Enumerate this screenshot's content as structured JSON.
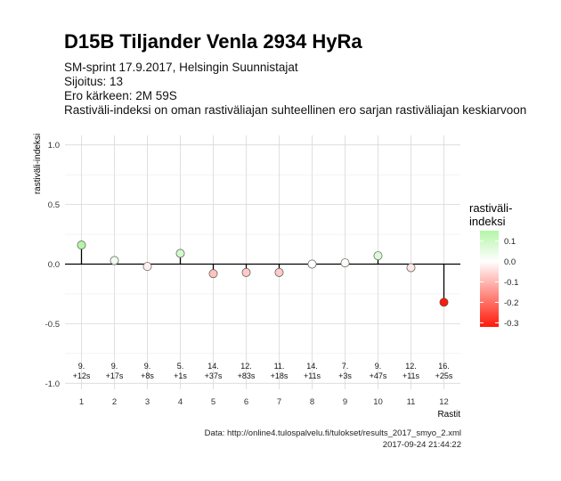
{
  "title": "D15B Tiljander Venla 2934 HyRa",
  "subtitle_lines": [
    "SM-sprint 17.9.2017, Helsingin Suunnistajat",
    "Sijoitus: 13",
    "Ero kärkeen: 2M 59S",
    "Rastiväli-indeksi on oman rastiväliajan suhteellinen ero sarjan rastiväliajan keskiarvoon"
  ],
  "caption": {
    "source": "Data: http://online4.tulospalvelu.fi/tulokset/results_2017_smyo_2.xml",
    "timestamp": "2017-09-24 21:44:22"
  },
  "legend": {
    "title": "rastiväli-\nindeksi",
    "ticks": [
      0.1,
      0.0,
      -0.1,
      -0.2,
      -0.3
    ],
    "tick_labels": [
      "0.1",
      "0.0",
      "-0.1",
      "-0.2",
      "-0.3"
    ],
    "color_high": "#b4f5a8",
    "color_mid": "#ffffff",
    "color_low": "#ff1a0a"
  },
  "chart_data": {
    "type": "lollipop",
    "xlabel": "Rastit",
    "ylabel": "rastiväli-indeksi",
    "ylim": [
      -1.05,
      1.08
    ],
    "y_ticks": [
      -1.0,
      -0.5,
      0.0,
      0.5,
      1.0
    ],
    "y_tick_labels": [
      "-1.0",
      "-0.5",
      "0.0",
      "0.5",
      "1.0"
    ],
    "x": [
      1,
      2,
      3,
      4,
      5,
      6,
      7,
      8,
      9,
      10,
      11,
      12
    ],
    "x_tick_labels": [
      "1",
      "2",
      "3",
      "4",
      "5",
      "6",
      "7",
      "8",
      "9",
      "10",
      "11",
      "12"
    ],
    "values": [
      0.16,
      0.03,
      -0.02,
      0.09,
      -0.08,
      -0.07,
      -0.07,
      0.0,
      0.01,
      0.07,
      -0.03,
      -0.32
    ],
    "rank_labels": [
      "9.",
      "9.",
      "9.",
      "5.",
      "14.",
      "12.",
      "11.",
      "14.",
      "7.",
      "9.",
      "12.",
      "16."
    ],
    "diff_labels": [
      "+12s",
      "+17s",
      "+8s",
      "+1s",
      "+37s",
      "+83s",
      "+18s",
      "+11s",
      "+3s",
      "+47s",
      "+11s",
      "+25s"
    ],
    "grid": true
  }
}
